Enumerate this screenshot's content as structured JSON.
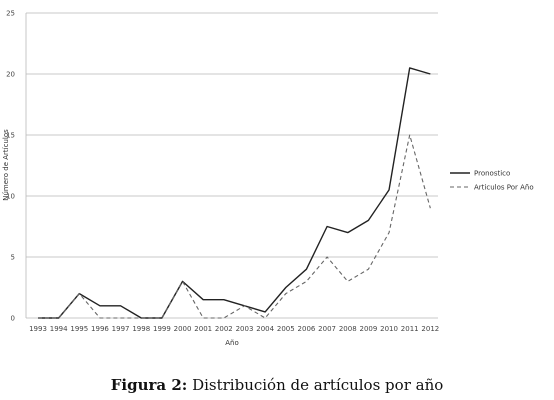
{
  "chart_data": {
    "type": "line",
    "categories": [
      "1993",
      "1994",
      "1995",
      "1996",
      "1997",
      "1998",
      "1999",
      "2000",
      "2001",
      "2002",
      "2003",
      "2004",
      "2005",
      "2006",
      "2007",
      "2008",
      "2009",
      "2010",
      "2011",
      "2012"
    ],
    "series": [
      {
        "name": "Pronostico",
        "style": "solid",
        "color": "#222222",
        "values": [
          0,
          0,
          2,
          1,
          1,
          0,
          0,
          3,
          1.5,
          1.5,
          1,
          0.5,
          2.5,
          4,
          7.5,
          7,
          8,
          10.5,
          20.5,
          20
        ]
      },
      {
        "name": "Articulos Por Año",
        "style": "dashed",
        "color": "#666666",
        "values": [
          0,
          0,
          2,
          0,
          0,
          0,
          0,
          3,
          0,
          0,
          1,
          0,
          2,
          3,
          5,
          3,
          4,
          7,
          15,
          9
        ]
      }
    ],
    "xlabel": "Año",
    "ylabel": "Número de Artículos",
    "ylim": [
      0,
      25
    ],
    "yticks": [
      "0",
      "5",
      "10",
      "15",
      "20",
      "25"
    ],
    "grid": true,
    "legend": "right"
  },
  "caption": {
    "label": "Figura 2:",
    "text": "Distribución de artículos por año"
  }
}
